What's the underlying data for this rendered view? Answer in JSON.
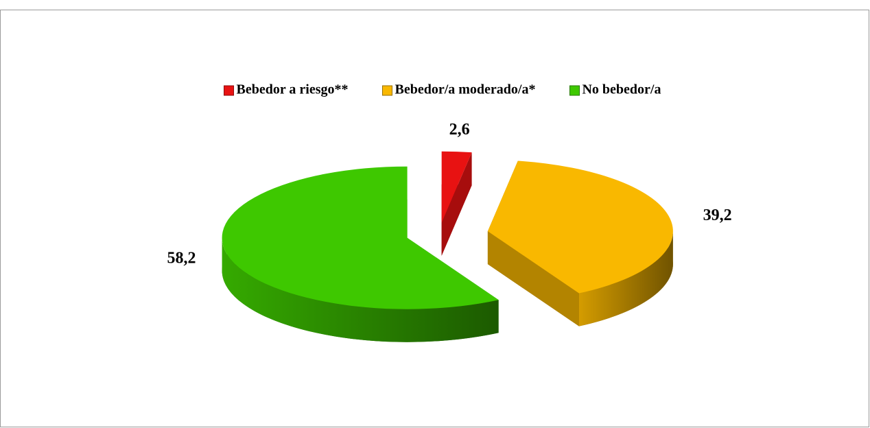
{
  "chart_data": {
    "type": "pie3d",
    "categories": [
      "Bebedor a riesgo**",
      "Bebedor/a moderado/a*",
      "No bebedor/a"
    ],
    "values": [
      2.6,
      39.2,
      58.2
    ],
    "value_labels": [
      "2,6",
      "39,2",
      "58,2"
    ],
    "colors": [
      "#e81212",
      "#f9b800",
      "#3ec800"
    ],
    "legend": "top"
  }
}
